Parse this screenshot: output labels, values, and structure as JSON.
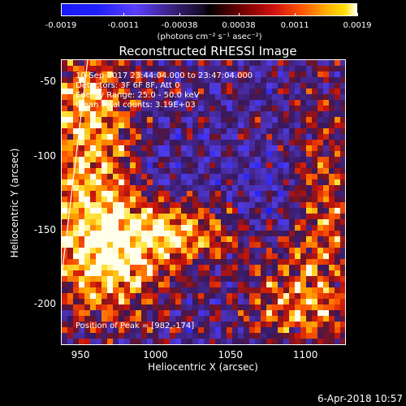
{
  "colorbar": {
    "ticks": [
      "-0.0019",
      "-0.0011",
      "-0.00038",
      "0.00038",
      "0.0011",
      "0.0019"
    ],
    "units": "(photons cm⁻² s⁻¹ asec⁻²)"
  },
  "title": "Reconstructed RHESSI Image",
  "annotations": {
    "time": "10-Sep-2017 23:44:04.000 to 23:47:04.000",
    "detectors": "Detectors: 3F 6F 8F, Att 0",
    "energy": "Energy Range: 25.0 - 50.0 keV",
    "clean": "Clean     Total counts: 3.19E+03",
    "peak": "Position of Peak = [982,-174]"
  },
  "timestamp": "6-Apr-2018 10:57",
  "chart_data": {
    "type": "heatmap",
    "title": "Reconstructed RHESSI Image",
    "xlabel": "Heliocentric X (arcsec)",
    "ylabel": "Heliocentric Y (arcsec)",
    "x_ticks": [
      950,
      1000,
      1050,
      1100
    ],
    "y_ticks": [
      -50,
      -100,
      -150,
      -200
    ],
    "xlim": [
      937,
      1127
    ],
    "ylim": [
      -228,
      -35
    ],
    "colorbar_range": [
      -0.0019,
      0.0019
    ],
    "peak": [
      982,
      -174
    ]
  }
}
